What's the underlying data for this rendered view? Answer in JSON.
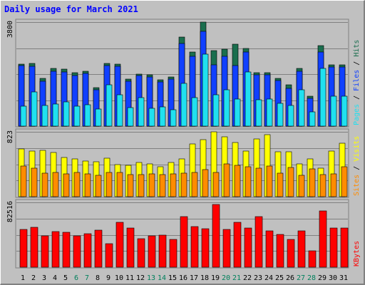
{
  "title": "Daily usage for March 2021",
  "colors": {
    "hits": "#1a6e4e",
    "files": "#1040ff",
    "pages": "#20e0f0",
    "visits": "#ffff00",
    "sites": "#ff8c00",
    "kbytes": "#ff0000",
    "weekend_label": "#00805c",
    "weekday_label": "#000000",
    "panel_bg": "#c0c0c0",
    "grid": "#808080"
  },
  "chart_data": [
    {
      "type": "bar",
      "name": "hits-files-pages",
      "ymax_label": "3800",
      "ylim": [
        0,
        3800
      ],
      "legend": [
        "Pages",
        "Files",
        "Hits"
      ],
      "series": [
        {
          "name": "Hits",
          "values": [
            2270,
            2280,
            1740,
            2100,
            2080,
            1960,
            2010,
            1400,
            2300,
            2260,
            1720,
            1910,
            1880,
            1680,
            1790,
            3260,
            2700,
            3800,
            2760,
            2800,
            3000,
            2840,
            1950,
            1960,
            1750,
            1500,
            2100,
            1100,
            2950,
            2250,
            2250
          ]
        },
        {
          "name": "Files",
          "values": [
            2200,
            2190,
            1650,
            2000,
            1980,
            1850,
            1920,
            1340,
            2200,
            2190,
            1630,
            1840,
            1800,
            1620,
            1730,
            3020,
            2550,
            3450,
            2240,
            2550,
            2200,
            2700,
            1870,
            1870,
            1670,
            1390,
            2000,
            1020,
            2700,
            2150,
            2150
          ]
        },
        {
          "name": "Pages",
          "values": [
            740,
            1260,
            760,
            800,
            880,
            730,
            780,
            620,
            1500,
            1140,
            680,
            1040,
            650,
            700,
            600,
            1560,
            1030,
            2620,
            1140,
            1340,
            1000,
            1990,
            950,
            980,
            830,
            760,
            1330,
            520,
            2100,
            1090,
            1090
          ]
        }
      ],
      "categories": [
        "1",
        "2",
        "3",
        "4",
        "5",
        "6",
        "7",
        "8",
        "9",
        "10",
        "11",
        "12",
        "13",
        "14",
        "15",
        "16",
        "17",
        "18",
        "19",
        "20",
        "21",
        "22",
        "23",
        "24",
        "25",
        "26",
        "27",
        "28",
        "29",
        "30",
        "31"
      ]
    },
    {
      "type": "bar",
      "name": "visits-sites",
      "ymax_label": "823",
      "ylim": [
        0,
        823
      ],
      "legend": [
        "Sites",
        "Visits"
      ],
      "series": [
        {
          "name": "Visits",
          "values": [
            610,
            580,
            590,
            560,
            500,
            480,
            450,
            440,
            490,
            410,
            400,
            430,
            420,
            380,
            430,
            480,
            670,
            720,
            820,
            760,
            690,
            580,
            730,
            790,
            570,
            570,
            420,
            480,
            360,
            580,
            680
          ]
        },
        {
          "name": "Sites",
          "values": [
            390,
            360,
            300,
            310,
            290,
            310,
            290,
            270,
            310,
            310,
            280,
            280,
            290,
            280,
            290,
            300,
            310,
            340,
            310,
            420,
            400,
            380,
            360,
            390,
            300,
            370,
            270,
            350,
            280,
            290,
            380
          ]
        }
      ]
    },
    {
      "type": "bar",
      "name": "kbytes",
      "ymax_label": "82516",
      "ylim": [
        0,
        82516
      ],
      "legend": [
        "KBytes"
      ],
      "series": [
        {
          "name": "KBytes",
          "values": [
            48000,
            51000,
            40000,
            45000,
            44000,
            40000,
            43000,
            47000,
            30000,
            57000,
            50000,
            36000,
            40000,
            41000,
            35000,
            64000,
            52000,
            49000,
            80000,
            48000,
            57000,
            50000,
            64000,
            46000,
            42000,
            35000,
            46000,
            21000,
            72000,
            50000,
            50000
          ]
        }
      ]
    }
  ]
}
